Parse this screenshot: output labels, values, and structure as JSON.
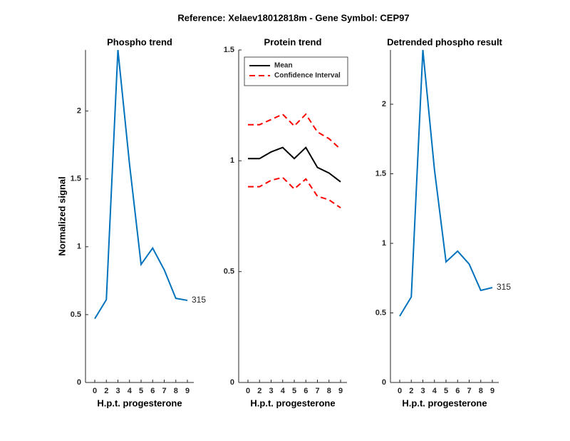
{
  "title": "Reference:  Xelaev18012818m - Gene Symbol:  CEP97",
  "chart_data": [
    {
      "type": "line",
      "title": "Phospho trend",
      "xlabel": "H.p.t. progesterone",
      "ylabel": "Normalized signal",
      "categories": [
        "0",
        "2",
        "3",
        "4",
        "5",
        "6",
        "7",
        "8",
        "9"
      ],
      "series": [
        {
          "color": "#0072bd",
          "values": [
            0.47,
            0.61,
            2.45,
            1.61,
            0.87,
            0.99,
            0.83,
            0.62,
            0.605
          ]
        }
      ],
      "annotation": "315",
      "ylim": [
        0,
        2.45
      ],
      "yticks": [
        0,
        0.5,
        1,
        1.5,
        2
      ]
    },
    {
      "type": "line",
      "title": "Protein trend",
      "xlabel": "H.p.t. progesterone",
      "categories": [
        "0",
        "2",
        "3",
        "4",
        "5",
        "6",
        "7",
        "8",
        "9"
      ],
      "series": [
        {
          "name": "Mean",
          "color": "#000000",
          "values": [
            1.01,
            1.01,
            1.04,
            1.06,
            1.01,
            1.06,
            0.97,
            0.945,
            0.905
          ]
        },
        {
          "name": "Confidence Interval",
          "color": "#ff0000",
          "dashed": true,
          "values": [
            1.163,
            1.163,
            1.186,
            1.21,
            1.157,
            1.21,
            1.13,
            1.1,
            1.052
          ],
          "lower": [
            0.883,
            0.883,
            0.912,
            0.925,
            0.873,
            0.918,
            0.84,
            0.824,
            0.788
          ]
        }
      ],
      "legend": "upper-left",
      "ylim": [
        0,
        1.5
      ],
      "yticks": [
        0,
        0.5,
        1,
        1.5
      ]
    },
    {
      "type": "line",
      "title": "Detrended phospho result",
      "xlabel": "H.p.t. progesterone",
      "categories": [
        "0",
        "2",
        "3",
        "4",
        "5",
        "6",
        "7",
        "8",
        "9"
      ],
      "series": [
        {
          "color": "#0072bd",
          "values": [
            0.477,
            0.615,
            2.39,
            1.53,
            0.867,
            0.944,
            0.851,
            0.662,
            0.682
          ]
        }
      ],
      "annotation": "315",
      "ylim": [
        0,
        2.39
      ],
      "yticks": [
        0,
        0.5,
        1,
        1.5,
        2
      ]
    }
  ]
}
